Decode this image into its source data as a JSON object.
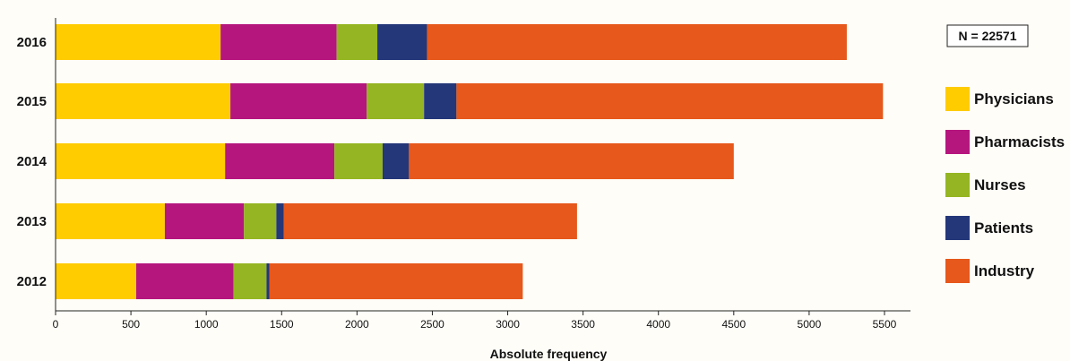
{
  "chart_data": {
    "type": "bar",
    "orientation": "horizontal",
    "stacked": true,
    "categories": [
      "2016",
      "2015",
      "2014",
      "2013",
      "2012"
    ],
    "series": [
      {
        "name": "Physicians",
        "color": "#ffcc00",
        "values": [
          1095,
          1160,
          1125,
          725,
          535
        ]
      },
      {
        "name": "Pharmacists",
        "color": "#b5167e",
        "values": [
          770,
          905,
          725,
          525,
          645
        ]
      },
      {
        "name": "Nurses",
        "color": "#95b522",
        "values": [
          270,
          380,
          320,
          215,
          220
        ]
      },
      {
        "name": "Patients",
        "color": "#243779",
        "values": [
          330,
          215,
          175,
          50,
          20
        ]
      },
      {
        "name": "Industry",
        "color": "#e6581b",
        "values": [
          2785,
          2830,
          2155,
          1945,
          1680
        ]
      }
    ],
    "xlabel": "Absolute frequency",
    "ylabel": "",
    "xlim": [
      0,
      5650
    ],
    "xticks": [
      0,
      500,
      1000,
      1500,
      2000,
      2500,
      3000,
      3500,
      4000,
      4500,
      5000,
      5500
    ],
    "grid": false,
    "legend_position": "right",
    "annotation": "N = 22571"
  }
}
